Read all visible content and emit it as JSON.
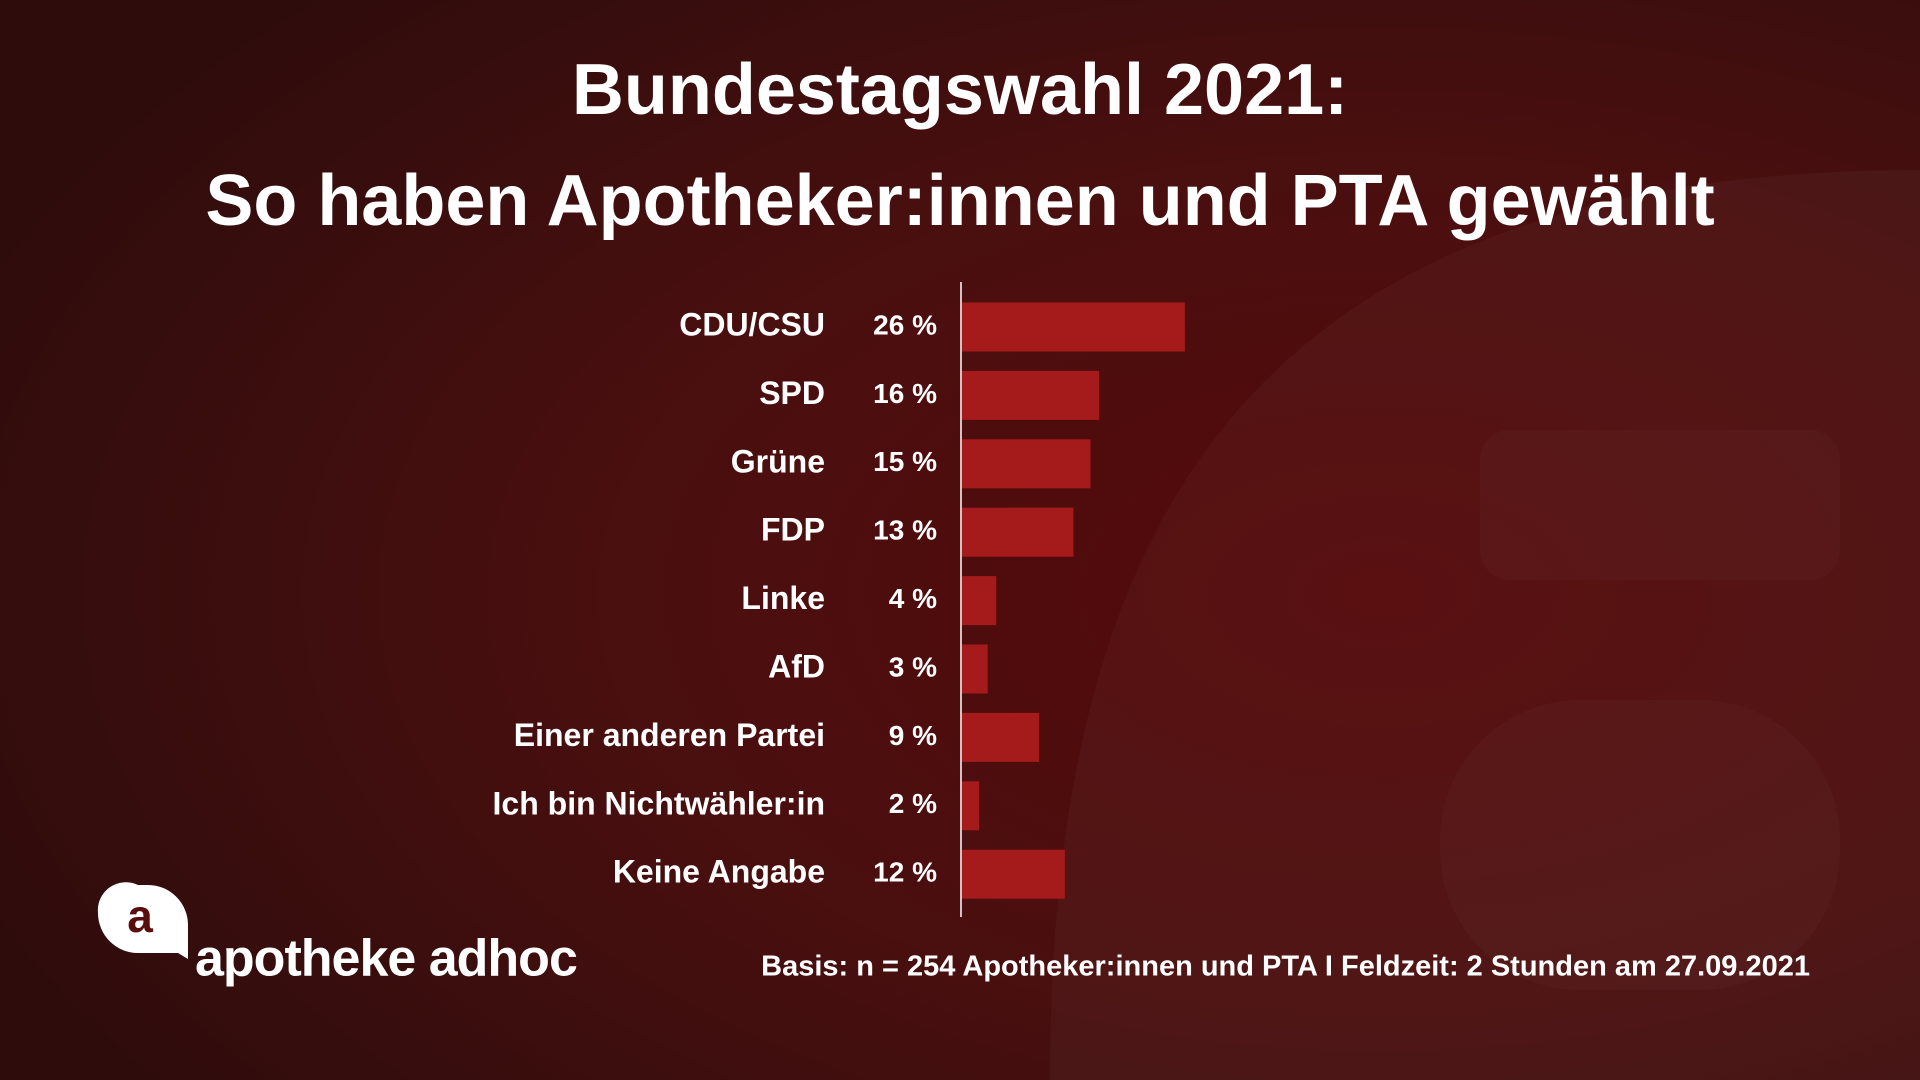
{
  "chart_data": {
    "type": "bar",
    "orientation": "horizontal",
    "title": "Bundestagswahl 2021:",
    "subtitle": "So haben Apotheker:innen und PTA gewählt",
    "categories": [
      "CDU/CSU",
      "SPD",
      "Grüne",
      "FDP",
      "Linke",
      "AfD",
      "Einer anderen Partei",
      "Ich bin Nichtwähler:in",
      "Keine Angabe"
    ],
    "values": [
      26,
      16,
      15,
      13,
      4,
      3,
      9,
      2,
      12
    ],
    "value_labels": [
      "26 %",
      "16 %",
      "15 %",
      "13 %",
      "4 %",
      "3 %",
      "9 %",
      "2 %",
      "12 %"
    ],
    "color": "#a51b1b",
    "footnote": "Basis: n = 254 Apotheker:innen und PTA I Feldzeit: 2 Stunden am 27.09.2021"
  },
  "brand": {
    "logo_mark": "a",
    "name": "apotheke adhoc"
  }
}
